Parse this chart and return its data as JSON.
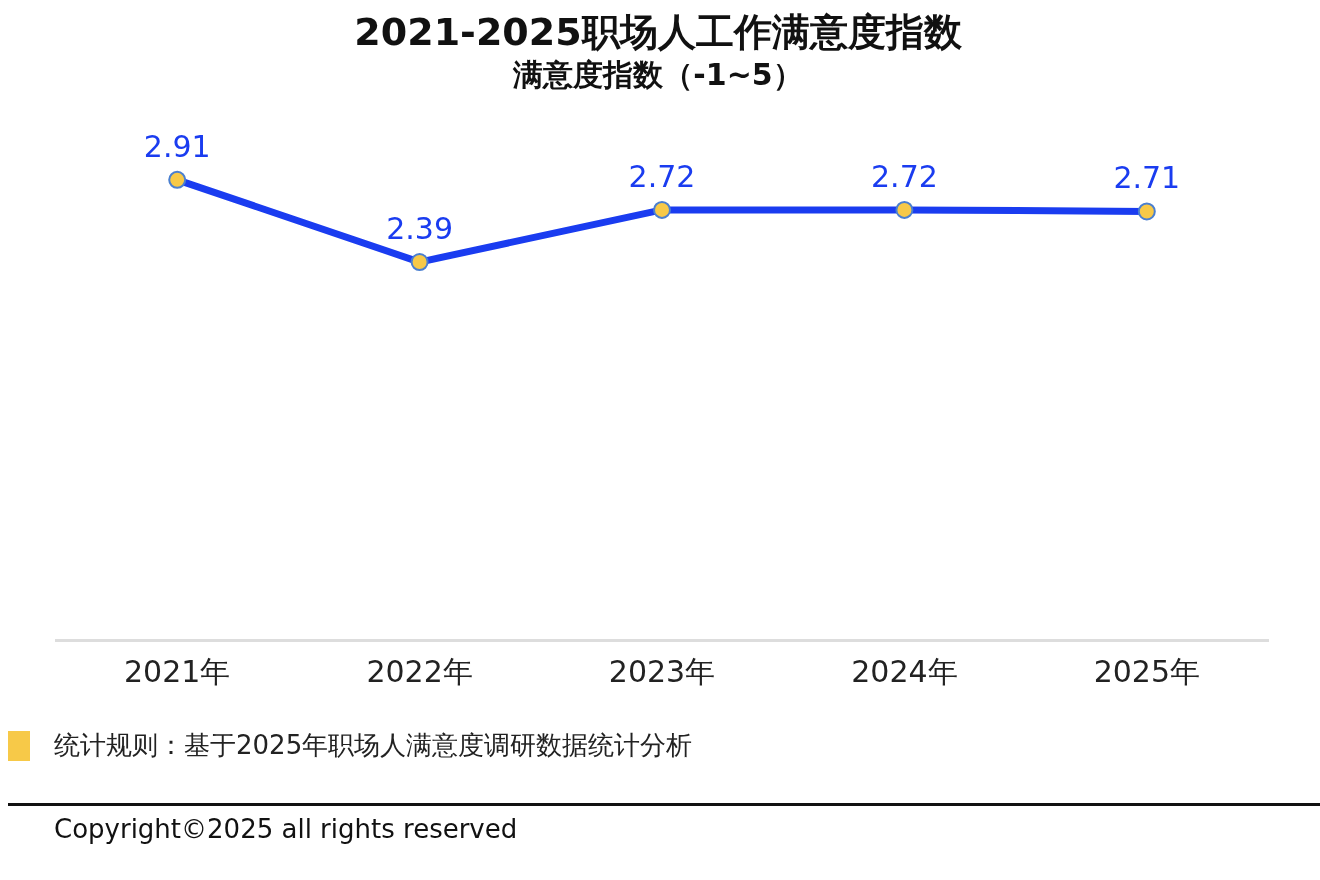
{
  "chart_data": {
    "type": "line",
    "title": "2021-2025职场人工作满意度指数",
    "subtitle": "满意度指数（-1~5）",
    "categories": [
      "2021年",
      "2022年",
      "2023年",
      "2024年",
      "2025年"
    ],
    "series": [
      {
        "color": "#1a3cf0",
        "values": [
          2.91,
          2.39,
          2.72,
          2.72,
          2.71
        ]
      }
    ],
    "tick_labels": "x",
    "data_labels": true,
    "marker": "circle",
    "grid": false,
    "legend": false,
    "annotations": [
      "统计规则：基于2025年职场人满意度调研数据统计分析",
      "Copyright©2025 all rights reserved"
    ]
  }
}
